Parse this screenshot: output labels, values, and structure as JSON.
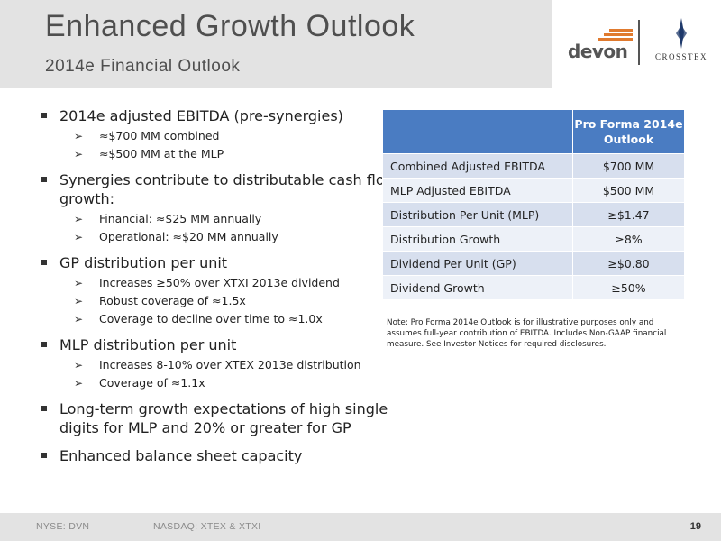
{
  "header": {
    "title": "Enhanced Growth Outlook",
    "subtitle": "2014e Financial Outlook"
  },
  "logos": {
    "devon": "devon",
    "crosstex": "CROSSTEX",
    "devon_color": "#e07a2e",
    "crosstex_color": "#1f3a6b"
  },
  "bullets": [
    {
      "text": "2014e adjusted EBITDA (pre-synergies)",
      "sub": [
        "≈$700 MM combined",
        "≈$500 MM at the MLP"
      ]
    },
    {
      "text": "Synergies contribute to distributable cash flow growth:",
      "sub": [
        "Financial: ≈$25 MM annually",
        "Operational: ≈$20 MM annually"
      ]
    },
    {
      "text": "GP distribution per unit",
      "sub": [
        "Increases ≥50% over XTXI 2013e dividend",
        "Robust coverage of ≈1.5x",
        "Coverage to decline over time to ≈1.0x"
      ]
    },
    {
      "text": "MLP distribution per unit",
      "sub": [
        "Increases 8-10% over XTEX 2013e distribution",
        "Coverage of ≈1.1x"
      ]
    },
    {
      "text": "Long-term growth expectations of high single digits for MLP and 20% or greater for GP",
      "sub": []
    },
    {
      "text": "Enhanced balance sheet capacity",
      "sub": []
    }
  ],
  "table": {
    "header": "Pro Forma 2014e Outlook",
    "header_color": "#4a7cc2",
    "rows": [
      {
        "label": "Combined Adjusted EBITDA",
        "value": "$700 MM"
      },
      {
        "label": "MLP Adjusted EBITDA",
        "value": "$500 MM"
      },
      {
        "label": "Distribution Per Unit (MLP)",
        "value": "≥$1.47"
      },
      {
        "label": "Distribution Growth",
        "value": "≥8%"
      },
      {
        "label": "Dividend Per Unit (GP)",
        "value": "≥$0.80"
      },
      {
        "label": "Dividend Growth",
        "value": "≥50%"
      }
    ]
  },
  "note": "Note: Pro Forma 2014e Outlook is for illustrative purposes only and assumes full-year contribution of EBITDA. Includes Non-GAAP financial measure. See Investor Notices for required disclosures.",
  "footer": {
    "left": "NYSE: DVN",
    "middle": "NASDAQ: XTEX & XTXI",
    "page": "19"
  }
}
